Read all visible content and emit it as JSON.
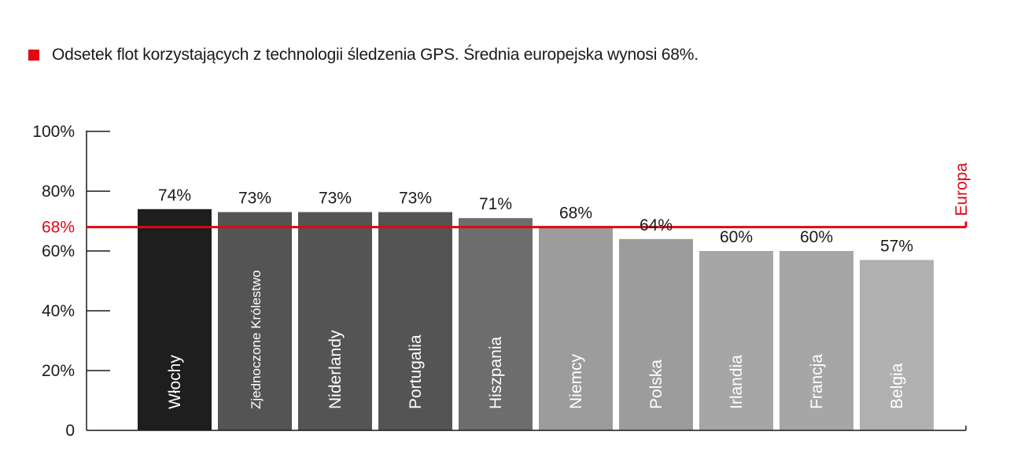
{
  "legend": {
    "text": "Odsetek flot korzystających z technologii śledzenia GPS. Średnia europejska wynosi 68%.",
    "color": "#e30613"
  },
  "chart_data": {
    "type": "bar",
    "categories": [
      "Włochy",
      "Zjednoczone Królestwo",
      "Niderlandy",
      "Portugalia",
      "Hiszpania",
      "Niemcy",
      "Polska",
      "Irlandia",
      "Francja",
      "Belgia"
    ],
    "values": [
      74,
      73,
      73,
      73,
      71,
      68,
      64,
      60,
      60,
      57
    ],
    "data_labels": [
      "74%",
      "73%",
      "73%",
      "73%",
      "71%",
      "68%",
      "64%",
      "60%",
      "60%",
      "57%"
    ],
    "bar_colors": [
      "#1e1e1e",
      "#545454",
      "#545454",
      "#545454",
      "#6d6d6d",
      "#9c9c9c",
      "#9c9c9c",
      "#a6a6a6",
      "#a6a6a6",
      "#b0b0b0"
    ],
    "ylim": [
      0,
      100
    ],
    "yticks": [
      {
        "value": 0,
        "label": "0"
      },
      {
        "value": 20,
        "label": "20%"
      },
      {
        "value": 40,
        "label": "40%"
      },
      {
        "value": 60,
        "label": "60%"
      },
      {
        "value": 80,
        "label": "80%"
      },
      {
        "value": 100,
        "label": "100%"
      }
    ],
    "reference_line": {
      "value": 68,
      "label": "68%",
      "name": "Europa",
      "color": "#e30613"
    },
    "title": "",
    "xlabel": "",
    "ylabel": ""
  }
}
